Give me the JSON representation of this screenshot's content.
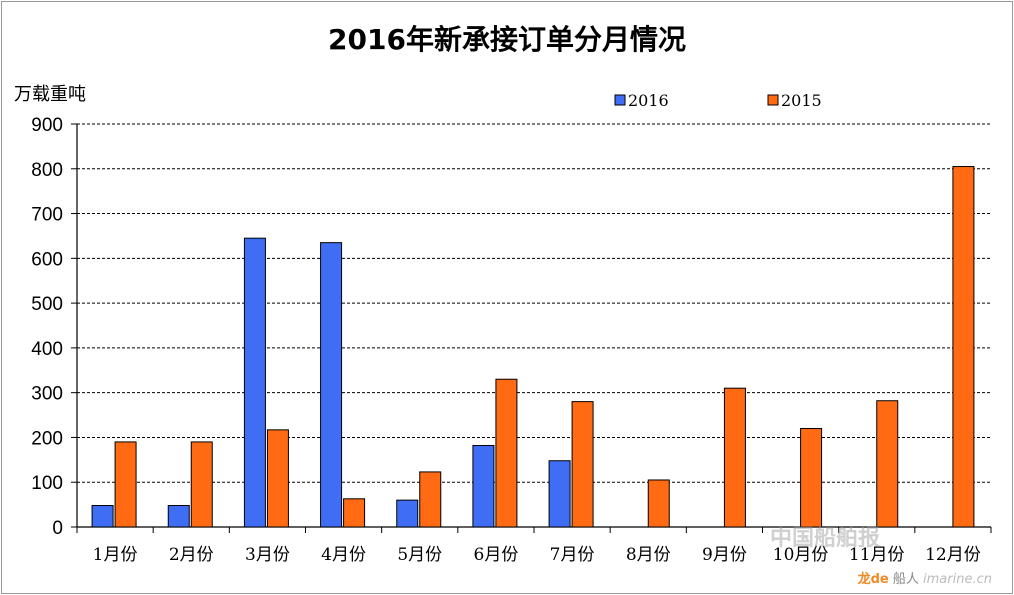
{
  "chart_data": {
    "type": "bar",
    "title": "2016年新承接订单分月情况",
    "ylabel": "万载重吨",
    "xlabel": "",
    "categories": [
      "1月份",
      "2月份",
      "3月份",
      "4月份",
      "5月份",
      "6月份",
      "7月份",
      "8月份",
      "9月份",
      "10月份",
      "11月份",
      "12月份"
    ],
    "series": [
      {
        "name": "2016",
        "color": "#3f6ef5",
        "values": [
          48,
          48,
          645,
          635,
          60,
          182,
          148,
          null,
          null,
          null,
          null,
          null
        ]
      },
      {
        "name": "2015",
        "color": "#ff6a13",
        "values": [
          190,
          190,
          217,
          63,
          123,
          330,
          280,
          105,
          310,
          220,
          282,
          805
        ]
      }
    ],
    "ylim": [
      0,
      900
    ],
    "yticks": [
      0,
      100,
      200,
      300,
      400,
      500,
      600,
      700,
      800,
      900
    ],
    "grid": true,
    "legend_position": "top-right"
  },
  "watermark": {
    "center": "中国船舶报",
    "brand": "龙de",
    "brand_suffix": "船人",
    "url": "imarine.cn"
  }
}
